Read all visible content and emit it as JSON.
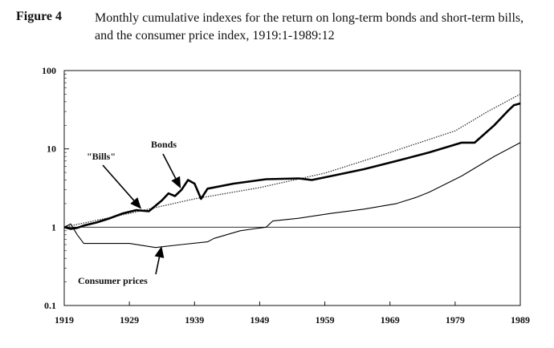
{
  "figure": {
    "label": "Figure 4",
    "caption": "Monthly cumulative indexes for the return on long-term bonds and short-term bills, and the consumer price index, 1919:1-1989:12"
  },
  "chart_data": {
    "type": "line",
    "title": "",
    "xlabel": "",
    "ylabel": "",
    "yscale": "log",
    "xlim": [
      1919,
      1989
    ],
    "ylim": [
      0.1,
      100
    ],
    "grid": false,
    "x_ticks": [
      "1919",
      "1929",
      "1939",
      "1949",
      "1959",
      "1969",
      "1979",
      "1989"
    ],
    "y_ticks": [
      "100",
      "10",
      "1",
      "0.1"
    ],
    "reference_line": 1,
    "series": [
      {
        "name": "\"Bills\"",
        "style": "dotted",
        "x": [
          1919,
          1929,
          1939,
          1949,
          1959,
          1969,
          1979,
          1984,
          1989
        ],
        "values": [
          1.0,
          1.5,
          2.3,
          3.2,
          4.9,
          9.0,
          17.0,
          30.0,
          50.0
        ]
      },
      {
        "name": "Bonds",
        "style": "thick",
        "x": [
          1919,
          1920,
          1921,
          1922,
          1924,
          1926,
          1928,
          1930,
          1932,
          1934,
          1935,
          1936,
          1937,
          1938,
          1939,
          1940,
          1941,
          1945,
          1950,
          1955,
          1957,
          1960,
          1965,
          1970,
          1975,
          1980,
          1982,
          1985,
          1987,
          1988,
          1989
        ],
        "values": [
          1.0,
          0.95,
          0.98,
          1.05,
          1.15,
          1.3,
          1.5,
          1.65,
          1.6,
          2.2,
          2.7,
          2.5,
          3.0,
          4.0,
          3.6,
          2.3,
          3.1,
          3.6,
          4.1,
          4.2,
          4.0,
          4.5,
          5.5,
          7.0,
          9.0,
          12.0,
          12.0,
          20.0,
          30.0,
          36.0,
          38.0
        ]
      },
      {
        "name": "Consumer prices",
        "style": "thin",
        "x": [
          1919,
          1920,
          1921,
          1922,
          1925,
          1929,
          1933,
          1937,
          1941,
          1942,
          1946,
          1948,
          1950,
          1951,
          1955,
          1960,
          1965,
          1970,
          1973,
          1975,
          1980,
          1985,
          1989
        ],
        "values": [
          1.0,
          1.1,
          0.8,
          0.62,
          0.62,
          0.62,
          0.55,
          0.6,
          0.65,
          0.72,
          0.9,
          0.95,
          1.0,
          1.2,
          1.3,
          1.5,
          1.7,
          2.0,
          2.4,
          2.8,
          4.5,
          8.0,
          12.0
        ]
      }
    ],
    "annotations": [
      {
        "text": "\"Bills\"",
        "target_x": 1931,
        "target_y": 1.65
      },
      {
        "text": "Bonds",
        "target_x": 1937,
        "target_y": 3.0
      },
      {
        "text": "Consumer prices",
        "target_x": 1934,
        "target_y": 0.6
      }
    ]
  }
}
